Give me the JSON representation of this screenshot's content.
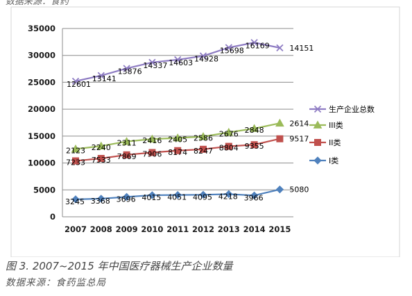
{
  "caption": "图 3. 2007~2015 年中国医疗器械生产企业数量",
  "source": "数据来源：食药监总局",
  "top_cut_text": "数据来源：食药",
  "colors": {
    "total": "#8e7cc3",
    "class3": "#9bbb59",
    "class2": "#c0504d",
    "class1": "#4f81bd"
  },
  "chart_data": {
    "type": "line",
    "categories": [
      "2007",
      "2008",
      "2009",
      "2010",
      "2011",
      "2012",
      "2013",
      "2014",
      "2015"
    ],
    "ylim": [
      0,
      35000
    ],
    "yticks": [
      0,
      5000,
      10000,
      15000,
      20000,
      25000,
      30000,
      35000
    ],
    "grid": true,
    "legend_position": "right",
    "series": [
      {
        "key": "total",
        "name": "生产企业总数",
        "marker": "x",
        "values": [
          25200,
          26250,
          27580,
          28700,
          29200,
          29900,
          31450,
          32380,
          31400
        ],
        "labels": [
          "12601",
          "13141",
          "13876",
          "14337",
          "14603",
          "14928",
          "15698",
          "16169",
          "14151"
        ]
      },
      {
        "key": "class3",
        "name": "III类",
        "marker": "triangle",
        "values": [
          12600,
          13150,
          14000,
          14450,
          14650,
          14900,
          15700,
          16400,
          17400
        ],
        "labels": [
          "2123",
          "2240",
          "2311",
          "2416",
          "2405",
          "2586",
          "2676",
          "2848",
          "2614"
        ]
      },
      {
        "key": "class2",
        "name": "II类",
        "marker": "square",
        "values": [
          10400,
          10850,
          11520,
          11950,
          12300,
          12550,
          13100,
          13400,
          14500
        ],
        "labels": [
          "7233",
          "7533",
          "7869",
          "7906",
          "8174",
          "8247",
          "8804",
          "9355",
          "9517"
        ]
      },
      {
        "key": "class1",
        "name": "I类",
        "marker": "diamond",
        "values": [
          3245,
          3368,
          3696,
          4015,
          4051,
          4095,
          4218,
          3966,
          5080
        ],
        "labels": [
          "3245",
          "3368",
          "3696",
          "4015",
          "4051",
          "4095",
          "4218",
          "3966",
          "5080"
        ]
      }
    ]
  }
}
